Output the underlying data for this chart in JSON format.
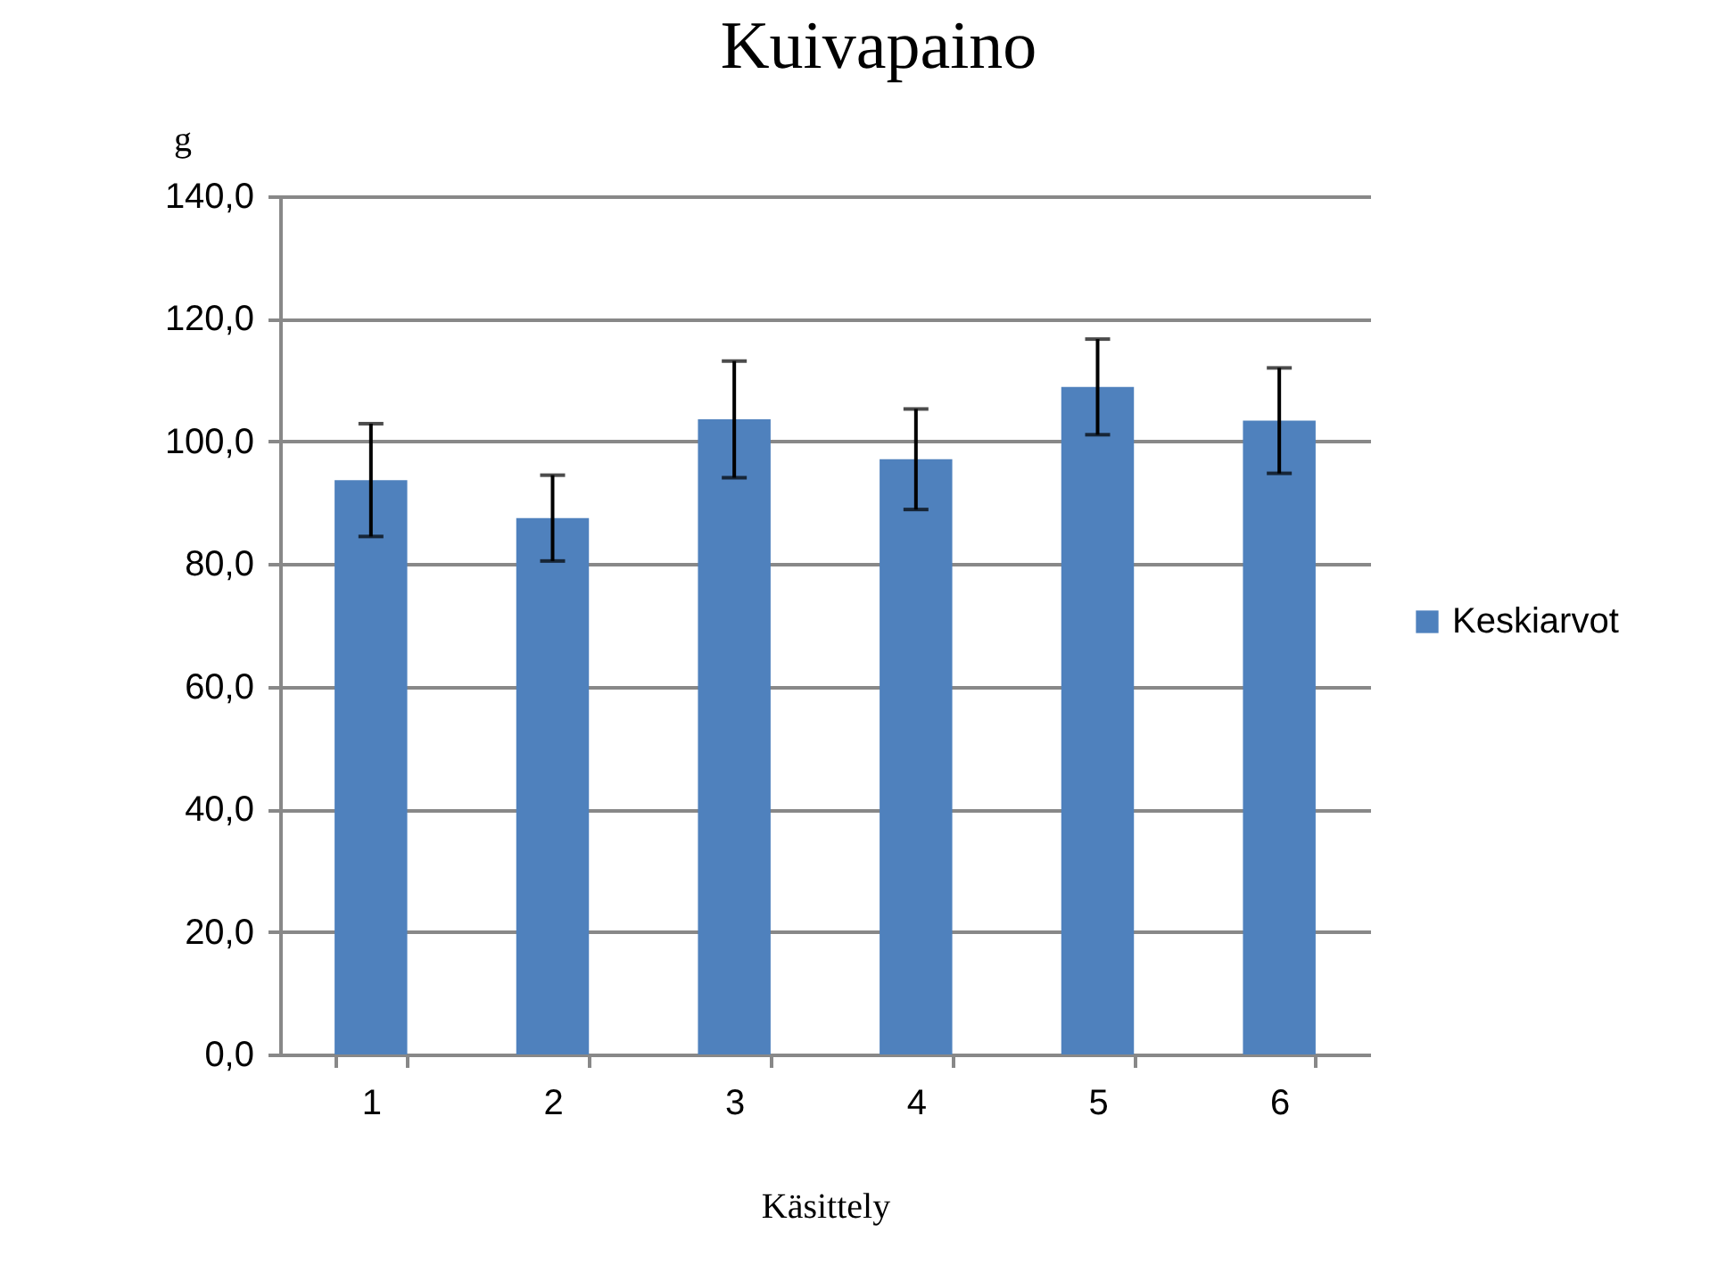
{
  "chart_data": {
    "type": "bar",
    "title": "Kuivapaino",
    "xlabel": "Käsittely",
    "ylabel": "g",
    "categories": [
      "1",
      "2",
      "3",
      "4",
      "5",
      "6"
    ],
    "series": [
      {
        "name": "Keskiarvot",
        "color": "#4f81bd",
        "values": [
          93.7,
          87.5,
          103.6,
          97.1,
          108.9,
          103.4
        ],
        "errors": [
          9.2,
          7.0,
          9.5,
          8.2,
          7.8,
          8.6
        ]
      }
    ],
    "ylim": [
      0,
      140
    ],
    "yticks": [
      {
        "value": 0,
        "label": "0,0"
      },
      {
        "value": 20,
        "label": "20,0"
      },
      {
        "value": 40,
        "label": "40,0"
      },
      {
        "value": 60,
        "label": "60,0"
      },
      {
        "value": 80,
        "label": "80,0"
      },
      {
        "value": 100,
        "label": "100,0"
      },
      {
        "value": 120,
        "label": "120,0"
      },
      {
        "value": 140,
        "label": "140,0"
      }
    ],
    "grid": "y",
    "legend": "right"
  }
}
